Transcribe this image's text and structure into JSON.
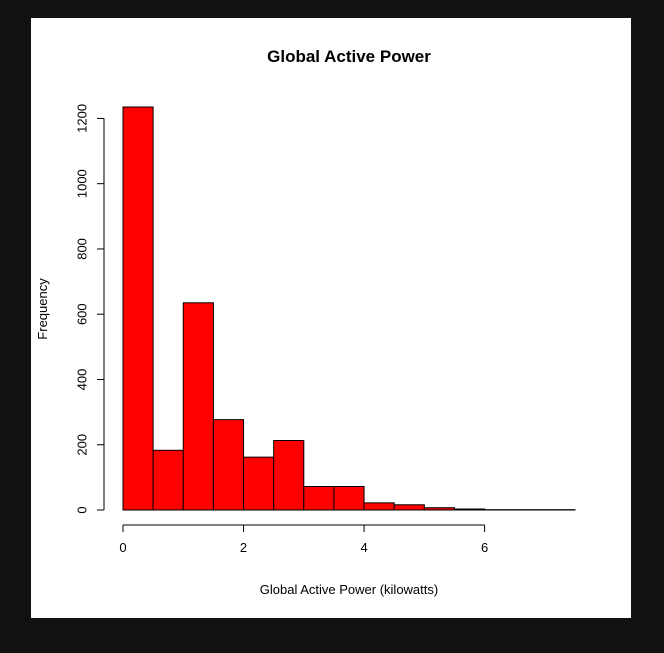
{
  "chart_data": {
    "type": "bar",
    "title": "Global Active Power",
    "xlabel": "Global Active Power (kilowatts)",
    "ylabel": "Frequency",
    "bin_edges": [
      0,
      0.5,
      1,
      1.5,
      2,
      2.5,
      3,
      3.5,
      4,
      4.5,
      5,
      5.5,
      6,
      6.5,
      7,
      7.5
    ],
    "values": [
      1235,
      183,
      635,
      277,
      162,
      213,
      72,
      72,
      22,
      16,
      7,
      3,
      1,
      1,
      1
    ],
    "xlim": [
      0,
      7.5
    ],
    "ylim": [
      0,
      1235
    ],
    "x_ticks": [
      0,
      2,
      4,
      6
    ],
    "y_ticks": [
      0,
      200,
      400,
      600,
      800,
      1000,
      1200
    ],
    "bar_color": "#ff0000",
    "bar_edge_color": "#000000",
    "grid": false
  }
}
